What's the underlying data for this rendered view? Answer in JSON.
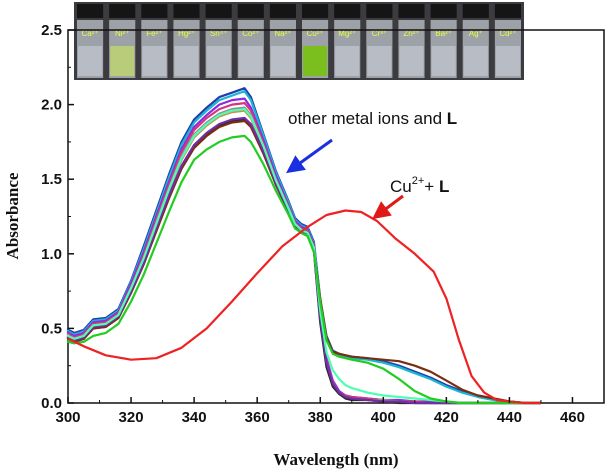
{
  "chart_data": {
    "type": "line",
    "title": "",
    "xlabel": "Wavelength (nm)",
    "ylabel": "Absorbance",
    "xlim": [
      300,
      470
    ],
    "ylim": [
      0.0,
      2.5
    ],
    "x_ticks": [
      "300",
      "320",
      "340",
      "360",
      "380",
      "400",
      "420",
      "440",
      "460"
    ],
    "y_ticks": [
      "0.0",
      "0.5",
      "1.0",
      "1.5",
      "2.0",
      "2.5"
    ],
    "grid": false,
    "annotations": {
      "other": {
        "text": "other metal ions and ",
        "bold": "L",
        "arrow_color": "#1a2fe0"
      },
      "cu": {
        "base": "Cu",
        "sup": "2+",
        "rest": "+ ",
        "bold": "L",
        "arrow_color": "#e01818"
      }
    },
    "vial_labels": [
      "Ca²⁺",
      "Ni²⁺",
      "Fe²⁺",
      "Hg²⁺",
      "Sn⁴⁺",
      "Co²⁺",
      "Na²⁺",
      "Cu²⁺",
      "Mg²⁺",
      "Cr³⁺",
      "Zn²⁺",
      "Ba²⁺",
      "Ag⁺",
      "Cd²⁺"
    ],
    "series": [
      {
        "color": "#ee2222",
        "x": [
          298,
          305,
          312,
          320,
          328,
          336,
          344,
          352,
          360,
          368,
          376,
          382,
          388,
          393,
          398,
          404,
          410,
          416,
          420,
          424,
          428,
          432,
          436,
          440,
          445,
          450
        ],
        "values": [
          0.43,
          0.38,
          0.32,
          0.29,
          0.3,
          0.37,
          0.5,
          0.68,
          0.87,
          1.05,
          1.18,
          1.26,
          1.29,
          1.28,
          1.22,
          1.1,
          1.0,
          0.88,
          0.7,
          0.42,
          0.18,
          0.07,
          0.02,
          0.01,
          0.0,
          0.0
        ]
      },
      {
        "color": "#1f3fb0",
        "x": [
          298,
          300,
          302,
          305,
          308,
          312,
          316,
          320,
          324,
          328,
          332,
          336,
          340,
          344,
          348,
          352,
          356,
          358,
          362,
          366,
          370,
          372,
          374,
          376,
          378,
          380,
          382,
          384,
          386,
          388,
          390,
          395,
          400,
          405,
          410,
          415,
          420,
          425,
          430,
          435,
          440,
          445,
          450
        ],
        "values": [
          0.5,
          0.49,
          0.47,
          0.49,
          0.56,
          0.57,
          0.63,
          0.82,
          1.05,
          1.29,
          1.53,
          1.75,
          1.9,
          1.98,
          2.05,
          2.08,
          2.11,
          2.05,
          1.8,
          1.55,
          1.35,
          1.24,
          1.2,
          1.18,
          1.08,
          0.7,
          0.45,
          0.35,
          0.33,
          0.32,
          0.31,
          0.3,
          0.28,
          0.25,
          0.21,
          0.17,
          0.12,
          0.08,
          0.05,
          0.03,
          0.01,
          0.0,
          0.0
        ]
      },
      {
        "color": "#1bb5d0",
        "x": [
          298,
          300,
          302,
          305,
          308,
          312,
          316,
          320,
          324,
          328,
          332,
          336,
          340,
          344,
          348,
          352,
          356,
          358,
          362,
          366,
          370,
          372,
          374,
          376,
          378,
          380,
          382,
          384,
          386,
          388,
          390,
          395,
          400,
          405,
          410,
          415,
          420,
          425,
          430,
          435,
          440,
          445,
          450
        ],
        "values": [
          0.49,
          0.48,
          0.46,
          0.48,
          0.55,
          0.56,
          0.62,
          0.81,
          1.03,
          1.27,
          1.51,
          1.73,
          1.88,
          1.96,
          2.03,
          2.06,
          2.09,
          2.03,
          1.79,
          1.54,
          1.34,
          1.23,
          1.19,
          1.17,
          1.07,
          0.69,
          0.44,
          0.34,
          0.32,
          0.31,
          0.3,
          0.29,
          0.27,
          0.24,
          0.2,
          0.16,
          0.11,
          0.07,
          0.04,
          0.02,
          0.01,
          0.0,
          0.0
        ]
      },
      {
        "color": "#8a2be2",
        "x": [
          298,
          300,
          302,
          305,
          308,
          312,
          316,
          320,
          324,
          328,
          332,
          336,
          340,
          344,
          348,
          352,
          356,
          358,
          362,
          366,
          370,
          372,
          374,
          376,
          378,
          380,
          382,
          384,
          386,
          388,
          390,
          395,
          400,
          405,
          410,
          415,
          420,
          425,
          430,
          435,
          440,
          445,
          450
        ],
        "values": [
          0.48,
          0.47,
          0.45,
          0.47,
          0.54,
          0.55,
          0.61,
          0.8,
          1.01,
          1.25,
          1.48,
          1.7,
          1.85,
          1.93,
          2.0,
          2.03,
          2.04,
          1.98,
          1.76,
          1.52,
          1.32,
          1.22,
          1.18,
          1.16,
          1.06,
          0.6,
          0.3,
          0.15,
          0.08,
          0.05,
          0.04,
          0.03,
          0.02,
          0.02,
          0.01,
          0.01,
          0.0,
          0.0,
          0.0,
          0.0,
          0.0,
          0.0,
          0.0
        ]
      },
      {
        "color": "#d63384",
        "x": [
          298,
          300,
          302,
          305,
          308,
          312,
          316,
          320,
          324,
          328,
          332,
          336,
          340,
          344,
          348,
          352,
          356,
          358,
          362,
          366,
          370,
          372,
          374,
          376,
          378,
          380,
          382,
          384,
          386,
          388,
          390,
          395,
          400,
          405,
          410,
          415,
          420,
          425,
          430,
          435,
          440,
          445,
          450
        ],
        "values": [
          0.47,
          0.46,
          0.44,
          0.46,
          0.53,
          0.54,
          0.6,
          0.78,
          0.99,
          1.23,
          1.46,
          1.68,
          1.83,
          1.91,
          1.97,
          2.0,
          2.01,
          1.96,
          1.74,
          1.5,
          1.31,
          1.21,
          1.17,
          1.15,
          1.05,
          0.58,
          0.28,
          0.14,
          0.07,
          0.05,
          0.04,
          0.03,
          0.02,
          0.01,
          0.01,
          0.0,
          0.0,
          0.0,
          0.0,
          0.0,
          0.0,
          0.0,
          0.0
        ]
      },
      {
        "color": "#909090",
        "x": [
          298,
          300,
          302,
          305,
          308,
          312,
          316,
          320,
          324,
          328,
          332,
          336,
          340,
          344,
          348,
          352,
          356,
          358,
          362,
          366,
          370,
          372,
          374,
          376,
          378,
          380,
          382,
          384,
          386,
          388,
          390,
          395,
          400,
          405,
          410,
          415,
          420,
          425,
          430,
          435,
          440,
          445,
          450
        ],
        "values": [
          0.46,
          0.45,
          0.43,
          0.45,
          0.52,
          0.53,
          0.59,
          0.77,
          0.97,
          1.21,
          1.44,
          1.65,
          1.8,
          1.88,
          1.94,
          1.97,
          1.98,
          1.93,
          1.72,
          1.49,
          1.3,
          1.2,
          1.16,
          1.14,
          1.04,
          0.56,
          0.26,
          0.13,
          0.07,
          0.04,
          0.03,
          0.02,
          0.02,
          0.01,
          0.0,
          0.0,
          0.0,
          0.0,
          0.0,
          0.0,
          0.0,
          0.0,
          0.0
        ]
      },
      {
        "color": "#c89050",
        "x": [
          298,
          300,
          302,
          305,
          308,
          312,
          316,
          320,
          324,
          328,
          332,
          336,
          340,
          344,
          348,
          352,
          356,
          358,
          362,
          366,
          370,
          372,
          374,
          376,
          378,
          380,
          382,
          384,
          386,
          388,
          390,
          395,
          400,
          405,
          410,
          415,
          420,
          425,
          430,
          435,
          440,
          445,
          450
        ],
        "values": [
          0.45,
          0.44,
          0.42,
          0.44,
          0.51,
          0.52,
          0.58,
          0.76,
          0.95,
          1.19,
          1.42,
          1.63,
          1.78,
          1.86,
          1.92,
          1.95,
          1.96,
          1.91,
          1.71,
          1.48,
          1.29,
          1.19,
          1.15,
          1.13,
          1.03,
          0.55,
          0.25,
          0.12,
          0.06,
          0.04,
          0.03,
          0.02,
          0.01,
          0.01,
          0.0,
          0.0,
          0.0,
          0.0,
          0.0,
          0.0,
          0.0,
          0.0,
          0.0
        ]
      },
      {
        "color": "#2a2a2a",
        "x": [
          298,
          300,
          302,
          305,
          308,
          312,
          316,
          320,
          324,
          328,
          332,
          336,
          340,
          344,
          348,
          352,
          356,
          358,
          362,
          366,
          370,
          372,
          374,
          376,
          378,
          380,
          382,
          384,
          386,
          388,
          390,
          395,
          400,
          405,
          410,
          415,
          420,
          425,
          430,
          435,
          440,
          445,
          450
        ],
        "values": [
          0.44,
          0.43,
          0.41,
          0.43,
          0.5,
          0.51,
          0.57,
          0.74,
          0.93,
          1.16,
          1.38,
          1.58,
          1.72,
          1.8,
          1.86,
          1.89,
          1.9,
          1.86,
          1.68,
          1.46,
          1.28,
          1.18,
          1.14,
          1.12,
          1.02,
          0.54,
          0.24,
          0.11,
          0.06,
          0.03,
          0.02,
          0.02,
          0.01,
          0.0,
          0.0,
          0.0,
          0.0,
          0.0,
          0.0,
          0.0,
          0.0,
          0.0,
          0.0
        ]
      },
      {
        "color": "#7a2e0e",
        "x": [
          298,
          300,
          302,
          305,
          308,
          312,
          316,
          320,
          324,
          328,
          332,
          336,
          340,
          344,
          348,
          352,
          356,
          358,
          362,
          366,
          370,
          372,
          374,
          376,
          378,
          380,
          382,
          384,
          386,
          388,
          390,
          395,
          400,
          405,
          410,
          415,
          420,
          425,
          430,
          435,
          440,
          445,
          450
        ],
        "values": [
          0.44,
          0.43,
          0.41,
          0.43,
          0.5,
          0.51,
          0.57,
          0.74,
          0.93,
          1.15,
          1.37,
          1.57,
          1.71,
          1.79,
          1.85,
          1.88,
          1.89,
          1.85,
          1.67,
          1.46,
          1.28,
          1.18,
          1.14,
          1.12,
          1.02,
          0.7,
          0.44,
          0.34,
          0.33,
          0.32,
          0.31,
          0.3,
          0.29,
          0.28,
          0.25,
          0.21,
          0.15,
          0.09,
          0.05,
          0.03,
          0.01,
          0.0,
          0.0
        ]
      },
      {
        "color": "#6f2da8",
        "x": [
          298,
          300,
          302,
          305,
          308,
          312,
          316,
          320,
          324,
          328,
          332,
          336,
          340,
          344,
          348,
          352,
          356,
          358,
          362,
          366,
          370,
          372,
          374,
          376,
          378,
          380,
          382,
          384,
          386,
          388,
          390,
          395,
          400,
          405,
          410,
          415,
          420,
          425,
          430,
          435,
          440,
          445,
          450
        ],
        "values": [
          0.45,
          0.44,
          0.42,
          0.44,
          0.51,
          0.52,
          0.58,
          0.75,
          0.94,
          1.17,
          1.39,
          1.59,
          1.73,
          1.81,
          1.87,
          1.9,
          1.91,
          1.87,
          1.69,
          1.47,
          1.29,
          1.19,
          1.15,
          1.13,
          1.03,
          0.57,
          0.27,
          0.13,
          0.07,
          0.04,
          0.03,
          0.02,
          0.01,
          0.01,
          0.0,
          0.0,
          0.0,
          0.0,
          0.0,
          0.0,
          0.0,
          0.0,
          0.0
        ]
      },
      {
        "color": "#4dffb0",
        "x": [
          298,
          300,
          302,
          305,
          308,
          312,
          316,
          320,
          324,
          328,
          332,
          336,
          340,
          344,
          348,
          352,
          356,
          358,
          362,
          366,
          370,
          372,
          374,
          376,
          378,
          380,
          382,
          384,
          386,
          388,
          390,
          395,
          400,
          405,
          410,
          415,
          420,
          425,
          430,
          435,
          440,
          445,
          450
        ],
        "values": [
          0.46,
          0.45,
          0.43,
          0.45,
          0.52,
          0.53,
          0.59,
          0.77,
          0.97,
          1.2,
          1.43,
          1.64,
          1.79,
          1.87,
          1.93,
          1.96,
          1.97,
          1.92,
          1.72,
          1.49,
          1.3,
          1.2,
          1.16,
          1.14,
          1.04,
          0.62,
          0.34,
          0.22,
          0.16,
          0.12,
          0.1,
          0.07,
          0.05,
          0.04,
          0.03,
          0.02,
          0.01,
          0.0,
          0.0,
          0.0,
          0.0,
          0.0,
          0.0
        ]
      },
      {
        "color": "#22cc22",
        "x": [
          298,
          300,
          302,
          305,
          308,
          312,
          316,
          320,
          324,
          328,
          332,
          336,
          340,
          344,
          348,
          352,
          356,
          358,
          362,
          366,
          370,
          372,
          374,
          376,
          378,
          380,
          382,
          384,
          386,
          388,
          390,
          395,
          400,
          405,
          410,
          415,
          420,
          425,
          430,
          435,
          440,
          445,
          450
        ],
        "values": [
          0.42,
          0.41,
          0.4,
          0.41,
          0.45,
          0.47,
          0.53,
          0.68,
          0.86,
          1.07,
          1.28,
          1.48,
          1.63,
          1.7,
          1.75,
          1.78,
          1.79,
          1.75,
          1.6,
          1.42,
          1.26,
          1.17,
          1.14,
          1.12,
          1.01,
          0.68,
          0.42,
          0.33,
          0.31,
          0.3,
          0.29,
          0.27,
          0.23,
          0.16,
          0.08,
          0.03,
          0.01,
          0.0,
          0.0,
          0.0,
          0.0,
          0.0,
          0.0
        ]
      }
    ]
  }
}
